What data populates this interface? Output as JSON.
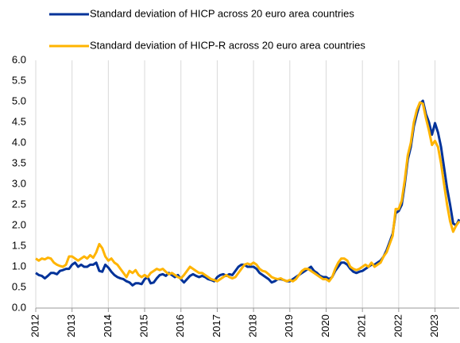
{
  "chart_data": {
    "type": "line",
    "legend": "top",
    "x_grid": true,
    "categories": [
      "2012",
      null,
      null,
      null,
      null,
      null,
      null,
      null,
      null,
      null,
      null,
      null,
      "2013",
      null,
      null,
      null,
      null,
      null,
      null,
      null,
      null,
      null,
      null,
      null,
      "2014",
      null,
      null,
      null,
      null,
      null,
      null,
      null,
      null,
      null,
      null,
      null,
      "2015",
      null,
      null,
      null,
      null,
      null,
      null,
      null,
      null,
      null,
      null,
      null,
      "2016",
      null,
      null,
      null,
      null,
      null,
      null,
      null,
      null,
      null,
      null,
      null,
      "2017",
      null,
      null,
      null,
      null,
      null,
      null,
      null,
      null,
      null,
      null,
      null,
      "2018",
      null,
      null,
      null,
      null,
      null,
      null,
      null,
      null,
      null,
      null,
      null,
      "2019",
      null,
      null,
      null,
      null,
      null,
      null,
      null,
      null,
      null,
      null,
      null,
      "2020",
      null,
      null,
      null,
      null,
      null,
      null,
      null,
      null,
      null,
      null,
      null,
      "2021",
      null,
      null,
      null,
      null,
      null,
      null,
      null,
      null,
      null,
      null,
      null,
      "2022",
      null,
      null,
      null,
      null,
      null,
      null,
      null,
      null,
      null,
      null,
      null,
      "2023",
      null,
      null,
      null,
      null,
      null,
      null,
      null,
      null
    ],
    "series": [
      {
        "name": "Standard deviation of HICP across 20 euro area countries",
        "color": "#003299",
        "values": [
          0.85,
          0.8,
          0.78,
          0.72,
          0.78,
          0.85,
          0.85,
          0.82,
          0.9,
          0.92,
          0.95,
          0.95,
          1.05,
          1.1,
          1.0,
          1.05,
          1.0,
          1.0,
          1.05,
          1.05,
          1.1,
          0.9,
          0.88,
          1.05,
          0.98,
          0.88,
          0.8,
          0.75,
          0.72,
          0.7,
          0.65,
          0.62,
          0.55,
          0.6,
          0.6,
          0.58,
          0.7,
          0.75,
          0.6,
          0.62,
          0.72,
          0.8,
          0.82,
          0.78,
          0.85,
          0.8,
          0.75,
          0.8,
          0.7,
          0.62,
          0.7,
          0.78,
          0.82,
          0.78,
          0.75,
          0.78,
          0.75,
          0.7,
          0.68,
          0.65,
          0.75,
          0.8,
          0.82,
          0.78,
          0.82,
          0.8,
          0.9,
          1.0,
          1.05,
          1.05,
          1.0,
          1.0,
          1.0,
          0.95,
          0.85,
          0.8,
          0.75,
          0.7,
          0.62,
          0.65,
          0.7,
          0.7,
          0.68,
          0.65,
          0.65,
          0.7,
          0.75,
          0.8,
          0.85,
          0.9,
          0.95,
          1.0,
          0.9,
          0.85,
          0.78,
          0.75,
          0.75,
          0.7,
          0.75,
          0.9,
          1.0,
          1.1,
          1.1,
          1.05,
          0.95,
          0.88,
          0.85,
          0.88,
          0.9,
          0.95,
          1.0,
          1.05,
          1.05,
          1.1,
          1.15,
          1.25,
          1.4,
          1.6,
          1.8,
          2.3,
          2.35,
          2.5,
          3.0,
          3.6,
          3.9,
          4.4,
          4.7,
          4.95,
          5.02,
          4.7,
          4.5,
          4.2,
          4.48,
          4.25,
          3.9,
          3.4,
          2.9,
          2.5,
          2.05,
          2.0,
          2.15
        ]
      },
      {
        "name": "Standard deviation of HICP-R across 20 euro area countries",
        "color": "#ffb400",
        "values": [
          1.2,
          1.15,
          1.2,
          1.18,
          1.22,
          1.2,
          1.1,
          1.05,
          1.02,
          1.0,
          1.05,
          1.25,
          1.25,
          1.2,
          1.15,
          1.2,
          1.25,
          1.2,
          1.28,
          1.22,
          1.35,
          1.55,
          1.45,
          1.25,
          1.15,
          1.2,
          1.1,
          1.05,
          0.95,
          0.85,
          0.75,
          0.9,
          0.85,
          0.92,
          0.8,
          0.75,
          0.8,
          0.75,
          0.85,
          0.9,
          0.95,
          0.92,
          0.95,
          0.88,
          0.82,
          0.85,
          0.8,
          0.75,
          0.72,
          0.8,
          0.9,
          1.0,
          0.95,
          0.9,
          0.85,
          0.85,
          0.8,
          0.75,
          0.7,
          0.68,
          0.65,
          0.7,
          0.75,
          0.8,
          0.75,
          0.72,
          0.75,
          0.85,
          0.95,
          1.05,
          1.08,
          1.05,
          1.1,
          1.05,
          0.95,
          0.9,
          0.88,
          0.82,
          0.75,
          0.72,
          0.7,
          0.72,
          0.68,
          0.65,
          0.68,
          0.65,
          0.7,
          0.8,
          0.9,
          0.95,
          0.95,
          0.9,
          0.85,
          0.8,
          0.75,
          0.7,
          0.7,
          0.65,
          0.75,
          0.95,
          1.1,
          1.2,
          1.2,
          1.15,
          1.0,
          0.95,
          0.92,
          0.95,
          1.0,
          1.05,
          1.0,
          1.1,
          1.0,
          1.05,
          1.1,
          1.25,
          1.35,
          1.55,
          1.75,
          2.4,
          2.4,
          2.6,
          3.1,
          3.7,
          4.0,
          4.5,
          4.8,
          4.98,
          4.95,
          4.6,
          4.3,
          3.95,
          4.05,
          3.9,
          3.5,
          3.0,
          2.5,
          2.1,
          1.85,
          2.0,
          2.1
        ]
      }
    ],
    "ylim": [
      0,
      6
    ],
    "yticks": [
      {
        "value": 0,
        "label": "0.0"
      },
      {
        "value": 0.5,
        "label": "0.5"
      },
      {
        "value": 1,
        "label": "1.0"
      },
      {
        "value": 1.5,
        "label": "1.5"
      },
      {
        "value": 2,
        "label": "2.0"
      },
      {
        "value": 2.5,
        "label": "2.5"
      },
      {
        "value": 3,
        "label": "3.0"
      },
      {
        "value": 3.5,
        "label": "3.5"
      },
      {
        "value": 4,
        "label": "4.0"
      },
      {
        "value": 4.5,
        "label": "4.5"
      },
      {
        "value": 5,
        "label": "5.0"
      },
      {
        "value": 5.5,
        "label": "5.5"
      },
      {
        "value": 6,
        "label": "6.0"
      }
    ]
  }
}
